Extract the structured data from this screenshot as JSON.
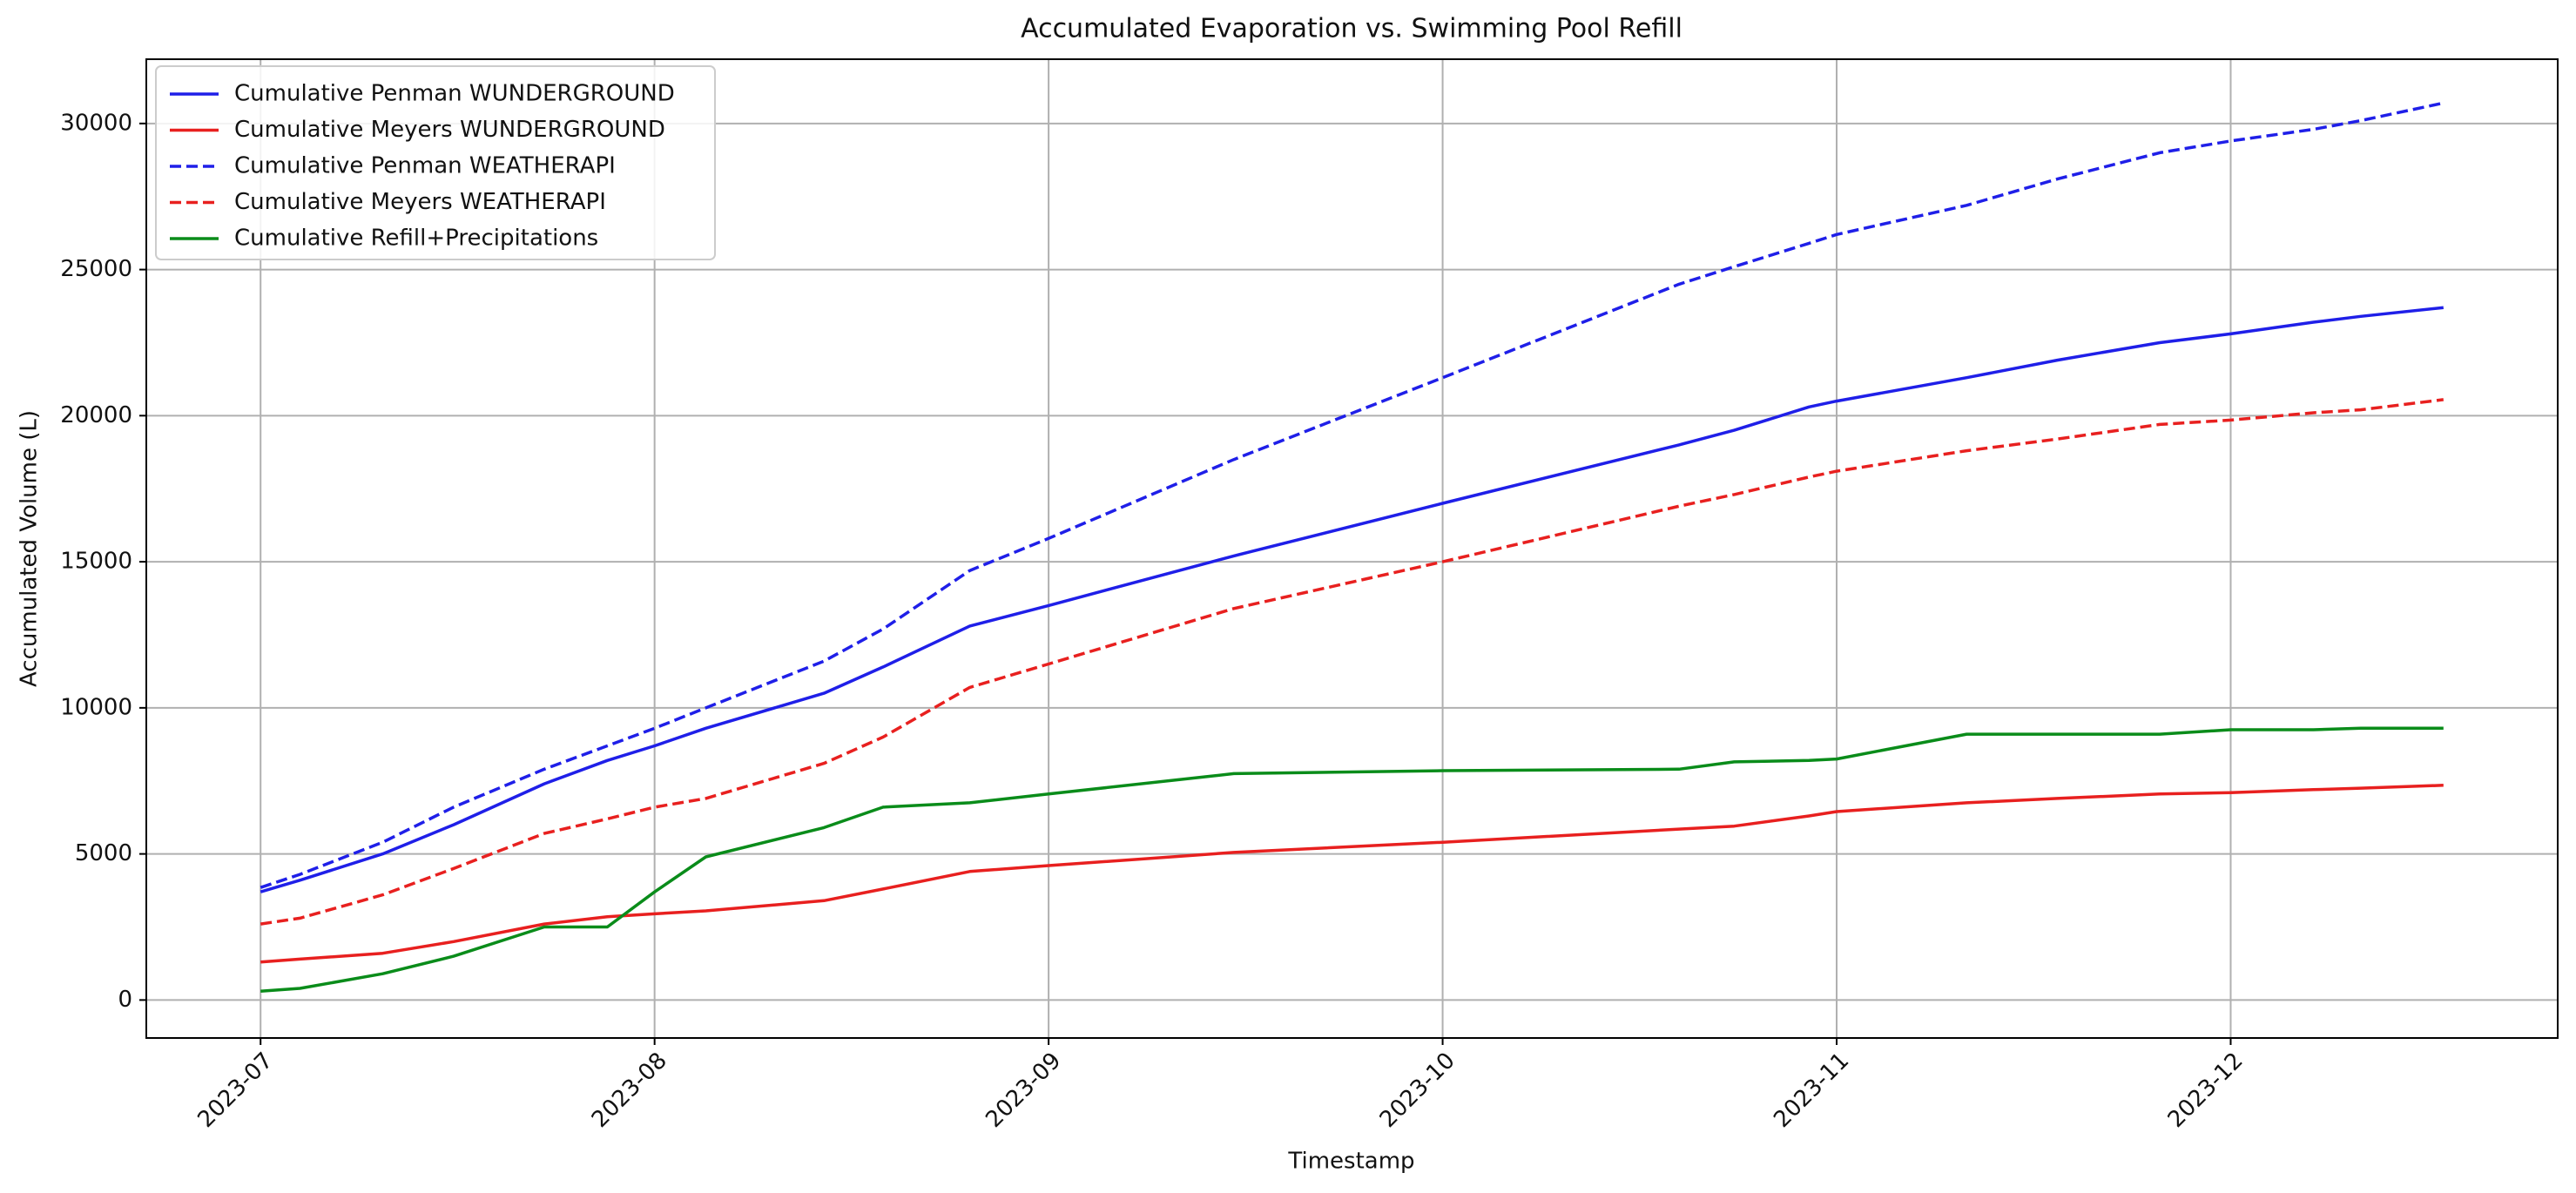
{
  "chart_data": {
    "type": "line",
    "title": "Accumulated Evaporation vs. Swimming Pool Refill",
    "x_label": "Timestamp",
    "y_label": "Accumulated Volume (L)",
    "x": [
      7.0,
      7.1,
      7.31,
      7.49,
      7.72,
      7.88,
      8.0,
      8.13,
      8.43,
      8.58,
      8.8,
      9.0,
      9.47,
      10.0,
      10.6,
      10.74,
      10.93,
      11.0,
      11.33,
      11.56,
      11.82,
      12.0,
      12.21,
      12.33,
      12.54
    ],
    "series": [
      {
        "name": "Cumulative Penman WUNDERGROUND",
        "color": "#1f1fe8",
        "dashed": false,
        "values": [
          3700,
          4100,
          5000,
          6000,
          7400,
          8200,
          8700,
          9300,
          10500,
          11400,
          12800,
          13500,
          15200,
          17000,
          19000,
          19500,
          20300,
          20500,
          21300,
          21900,
          22500,
          22800,
          23200,
          23400,
          23700
        ]
      },
      {
        "name": "Cumulative Meyers WUNDERGROUND",
        "color": "#e8201f",
        "dashed": false,
        "values": [
          1300,
          1400,
          1600,
          2000,
          2600,
          2850,
          2950,
          3050,
          3400,
          3800,
          4400,
          4600,
          5050,
          5400,
          5850,
          5950,
          6300,
          6450,
          6750,
          6900,
          7050,
          7100,
          7200,
          7250,
          7350
        ]
      },
      {
        "name": "Cumulative Penman WEATHERAPI",
        "color": "#1f1fe8",
        "dashed": true,
        "values": [
          3850,
          4300,
          5400,
          6600,
          7900,
          8700,
          9300,
          10000,
          11600,
          12700,
          14700,
          15800,
          18500,
          21300,
          24500,
          25100,
          25900,
          26200,
          27200,
          28100,
          29000,
          29400,
          29800,
          30100,
          30700
        ]
      },
      {
        "name": "Cumulative Meyers WEATHERAPI",
        "color": "#e8201f",
        "dashed": true,
        "values": [
          2600,
          2800,
          3600,
          4500,
          5700,
          6200,
          6600,
          6900,
          8100,
          9000,
          10700,
          11500,
          13400,
          15000,
          16900,
          17300,
          17900,
          18100,
          18800,
          19200,
          19700,
          19850,
          20100,
          20200,
          20550
        ]
      },
      {
        "name": "Cumulative Refill+Precipitations",
        "color": "#0a8c1a",
        "dashed": false,
        "values": [
          300,
          400,
          900,
          1500,
          2500,
          2500,
          3700,
          4900,
          5900,
          6600,
          6750,
          7050,
          7750,
          7850,
          7900,
          8150,
          8200,
          8250,
          9100,
          9100,
          9100,
          9250,
          9250,
          9300,
          9300
        ]
      }
    ],
    "xlim": [
      6.71,
      12.83
    ],
    "xticks": [
      {
        "value": 7,
        "label": "2023-07"
      },
      {
        "value": 8,
        "label": "2023-08"
      },
      {
        "value": 9,
        "label": "2023-09"
      },
      {
        "value": 10,
        "label": "2023-10"
      },
      {
        "value": 11,
        "label": "2023-11"
      },
      {
        "value": 12,
        "label": "2023-12"
      }
    ],
    "ylim": [
      -1300,
      32200
    ],
    "yticks": [
      0,
      5000,
      10000,
      15000,
      20000,
      25000,
      30000
    ],
    "grid": true,
    "legend": "upper left"
  }
}
